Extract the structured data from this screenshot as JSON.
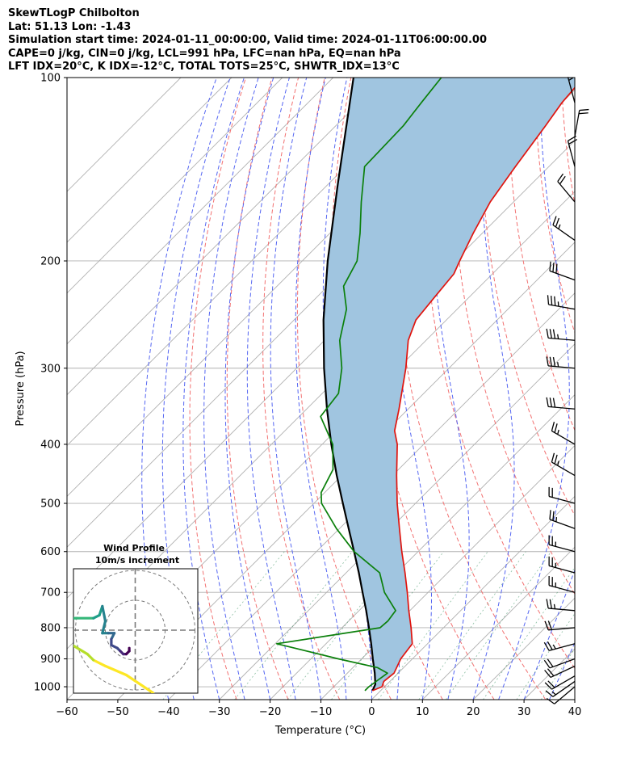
{
  "header": {
    "title": "SkewTLogP Chilbolton",
    "location": "Lat: 51.13   Lon: -1.43",
    "times": "Simulation start time: 2024-01-11_00:00:00, Valid time: 2024-01-11T06:00:00.00",
    "indices1": "CAPE=0 j/kg, CIN=0 j/kg, LCL=991 hPa, LFC=nan hPa, EQ=nan hPa",
    "indices2": "LFT IDX=20°C, K IDX=-12°C, TOTAL TOTS=25°C, SHWTR_IDX=13°C"
  },
  "chart_data": {
    "type": "line",
    "title": "SkewTLogP Chilbolton",
    "xlabel": "Temperature (°C)",
    "ylabel": "Pressure (hPa)",
    "xlim": [
      -60,
      40
    ],
    "ylim": [
      1050,
      100
    ],
    "y_scale": "log",
    "skew": "45-degree isotherms",
    "grid": true,
    "x_ticks": [
      -60,
      -50,
      -40,
      -30,
      -20,
      -10,
      0,
      10,
      20,
      30,
      40
    ],
    "x_tick_labels": [
      "−60",
      "−50",
      "−40",
      "−30",
      "−20",
      "−10",
      "0",
      "10",
      "20",
      "30",
      "40"
    ],
    "y_ticks": [
      1000,
      900,
      800,
      700,
      600,
      500,
      400,
      300,
      200,
      100
    ],
    "y_tick_labels": [
      "1000",
      "900",
      "800",
      "700",
      "600",
      "500",
      "400",
      "300",
      "200",
      "100"
    ],
    "series": [
      {
        "key": "temperature",
        "color": "#e0140e",
        "points": [
          [
            1015,
            -1.6
          ],
          [
            1000,
            -0.5
          ],
          [
            980,
            -1.2
          ],
          [
            950,
            -0.8
          ],
          [
            900,
            -2.3
          ],
          [
            850,
            -3.0
          ],
          [
            800,
            -6.4
          ],
          [
            750,
            -10.2
          ],
          [
            700,
            -14.1
          ],
          [
            650,
            -18.4
          ],
          [
            600,
            -23.2
          ],
          [
            550,
            -28.2
          ],
          [
            500,
            -33.6
          ],
          [
            450,
            -39.2
          ],
          [
            400,
            -45.2
          ],
          [
            380,
            -48.4
          ],
          [
            350,
            -51.8
          ],
          [
            300,
            -58.5
          ],
          [
            270,
            -63.5
          ],
          [
            250,
            -66.0
          ],
          [
            230,
            -66.8
          ],
          [
            210,
            -67.6
          ],
          [
            200,
            -69.0
          ],
          [
            180,
            -71.8
          ],
          [
            160,
            -74.6
          ],
          [
            140,
            -76.6
          ],
          [
            120,
            -78.7
          ],
          [
            110,
            -80.0
          ],
          [
            100,
            -80.7
          ]
        ]
      },
      {
        "key": "dewpoint",
        "color": "#0b800b",
        "points": [
          [
            1015,
            -3.1
          ],
          [
            1000,
            -3.1
          ],
          [
            950,
            -2.1
          ],
          [
            930,
            -5.2
          ],
          [
            900,
            -14.6
          ],
          [
            850,
            -29.7
          ],
          [
            800,
            -12.5
          ],
          [
            780,
            -12.3
          ],
          [
            750,
            -12.8
          ],
          [
            700,
            -18.6
          ],
          [
            650,
            -23.4
          ],
          [
            600,
            -32.6
          ],
          [
            550,
            -40.6
          ],
          [
            500,
            -48.5
          ],
          [
            480,
            -50.7
          ],
          [
            440,
            -52.9
          ],
          [
            400,
            -57.9
          ],
          [
            360,
            -65.8
          ],
          [
            330,
            -66.8
          ],
          [
            300,
            -71.1
          ],
          [
            270,
            -77.0
          ],
          [
            240,
            -81.8
          ],
          [
            220,
            -86.9
          ],
          [
            200,
            -89.2
          ],
          [
            180,
            -94.1
          ],
          [
            160,
            -100.0
          ],
          [
            140,
            -106.3
          ],
          [
            120,
            -106.7
          ],
          [
            110,
            -107.7
          ],
          [
            100,
            -108.7
          ]
        ]
      },
      {
        "key": "parcel",
        "color": "#000000",
        "points": [
          [
            1015,
            -1.6
          ],
          [
            991,
            -2.3
          ],
          [
            950,
            -4.6
          ],
          [
            900,
            -7.8
          ],
          [
            850,
            -11.1
          ],
          [
            800,
            -14.7
          ],
          [
            750,
            -18.6
          ],
          [
            700,
            -22.9
          ],
          [
            650,
            -27.5
          ],
          [
            600,
            -32.6
          ],
          [
            550,
            -38.2
          ],
          [
            500,
            -44.3
          ],
          [
            450,
            -51.0
          ],
          [
            400,
            -58.2
          ],
          [
            350,
            -66.0
          ],
          [
            300,
            -74.6
          ],
          [
            250,
            -84.2
          ],
          [
            200,
            -95.0
          ],
          [
            150,
            -108.0
          ],
          [
            100,
            -126.0
          ]
        ]
      }
    ],
    "wind_barbs": {
      "units": "knots",
      "barbs": [
        {
          "p": 1000,
          "speed": 10,
          "dir": 230
        },
        {
          "p": 980,
          "speed": 15,
          "dir": 235
        },
        {
          "p": 960,
          "speed": 20,
          "dir": 240
        },
        {
          "p": 925,
          "speed": 20,
          "dir": 245
        },
        {
          "p": 900,
          "speed": 20,
          "dir": 250
        },
        {
          "p": 850,
          "speed": 25,
          "dir": 255
        },
        {
          "p": 800,
          "speed": 20,
          "dir": 265
        },
        {
          "p": 750,
          "speed": 25,
          "dir": 275
        },
        {
          "p": 700,
          "speed": 25,
          "dir": 285
        },
        {
          "p": 650,
          "speed": 25,
          "dir": 285
        },
        {
          "p": 600,
          "speed": 25,
          "dir": 285
        },
        {
          "p": 550,
          "speed": 25,
          "dir": 290
        },
        {
          "p": 500,
          "speed": 20,
          "dir": 285
        },
        {
          "p": 450,
          "speed": 25,
          "dir": 300
        },
        {
          "p": 400,
          "speed": 25,
          "dir": 300
        },
        {
          "p": 350,
          "speed": 30,
          "dir": 275
        },
        {
          "p": 300,
          "speed": 35,
          "dir": 275
        },
        {
          "p": 270,
          "speed": 35,
          "dir": 275
        },
        {
          "p": 240,
          "speed": 35,
          "dir": 280
        },
        {
          "p": 215,
          "speed": 30,
          "dir": 290
        },
        {
          "p": 185,
          "speed": 25,
          "dir": 305
        },
        {
          "p": 160,
          "speed": 20,
          "dir": 320
        },
        {
          "p": 140,
          "speed": 20,
          "dir": 345
        },
        {
          "p": 125,
          "speed": 20,
          "dir": 10
        },
        {
          "p": 110,
          "speed": 5,
          "dir": 345
        }
      ]
    },
    "hodograph": {
      "title": "Wind Profile",
      "subtitle": "10m/s increment",
      "ring_step": 10,
      "range": [
        -25,
        25
      ],
      "colormap": "viridis",
      "points": [
        [
          6,
          -21
        ],
        [
          -3,
          -15
        ],
        [
          -10,
          -12
        ],
        [
          -14,
          -10
        ],
        [
          -16,
          -8
        ],
        [
          -21,
          -5
        ],
        [
          -24,
          -2
        ],
        [
          -25,
          0
        ],
        [
          -24,
          4
        ],
        [
          -20,
          4
        ],
        [
          -14,
          4
        ],
        [
          -12,
          5
        ],
        [
          -11,
          8
        ],
        [
          -10,
          3
        ],
        [
          -11,
          -1
        ],
        [
          -9,
          -1
        ],
        [
          -7,
          -1
        ],
        [
          -8,
          -3
        ],
        [
          -8,
          -5
        ],
        [
          -6,
          -6
        ],
        [
          -5,
          -7
        ],
        [
          -4,
          -8
        ],
        [
          -3,
          -8
        ],
        [
          -2,
          -7
        ],
        [
          -2,
          -6
        ]
      ]
    }
  }
}
